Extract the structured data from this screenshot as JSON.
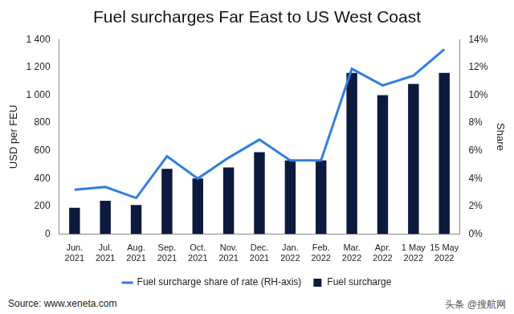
{
  "chart_data": {
    "type": "bar",
    "title": "Fuel surcharges Far East to US West Coast",
    "y_label": "USD per FEU",
    "y2_label": "Share",
    "annotations": [
      "Source: www.xeneta.com",
      "头条 @搜航网"
    ],
    "categories": [
      "Jun. 2021",
      "Jul. 2021",
      "Aug. 2021",
      "Sep. 2021",
      "Oct. 2021",
      "Nov. 2021",
      "Dec. 2021",
      "Jan. 2022",
      "Feb. 2022",
      "Mar. 2022",
      "Apr. 2022",
      "1 May 2022",
      "15 May 2022"
    ],
    "series": [
      {
        "name": "Fuel surcharge",
        "type": "bar",
        "color": "#0c1a3d",
        "values": [
          190,
          240,
          210,
          470,
          400,
          480,
          590,
          530,
          530,
          1160,
          1000,
          1080,
          1160
        ]
      },
      {
        "name": "Fuel surcharge share of rate (RH-axis)",
        "type": "line",
        "axis": "y2",
        "color": "#2f7fe0",
        "marker": "none",
        "line_style": "solid",
        "values": [
          3.2,
          3.4,
          2.6,
          5.6,
          4.0,
          5.5,
          6.8,
          5.3,
          5.3,
          11.9,
          10.7,
          11.4,
          13.3
        ]
      }
    ],
    "ylim": [
      0,
      1400
    ],
    "yticks": [
      0,
      200,
      400,
      600,
      800,
      {
        "value": 1000,
        "label": "1 000"
      },
      {
        "value": 1200,
        "label": "1 200"
      },
      {
        "value": 1400,
        "label": "1 400"
      }
    ],
    "y2lim": [
      0,
      14
    ],
    "y2ticks": [
      {
        "value": 0,
        "label": "0%"
      },
      {
        "value": 2,
        "label": "2%"
      },
      {
        "value": 4,
        "label": "4%"
      },
      {
        "value": 6,
        "label": "6%"
      },
      {
        "value": 8,
        "label": "8%"
      },
      {
        "value": 10,
        "label": "10%"
      },
      {
        "value": 12,
        "label": "12%"
      },
      {
        "value": 14,
        "label": "14%"
      }
    ],
    "grid": false,
    "legend": "bottom"
  }
}
